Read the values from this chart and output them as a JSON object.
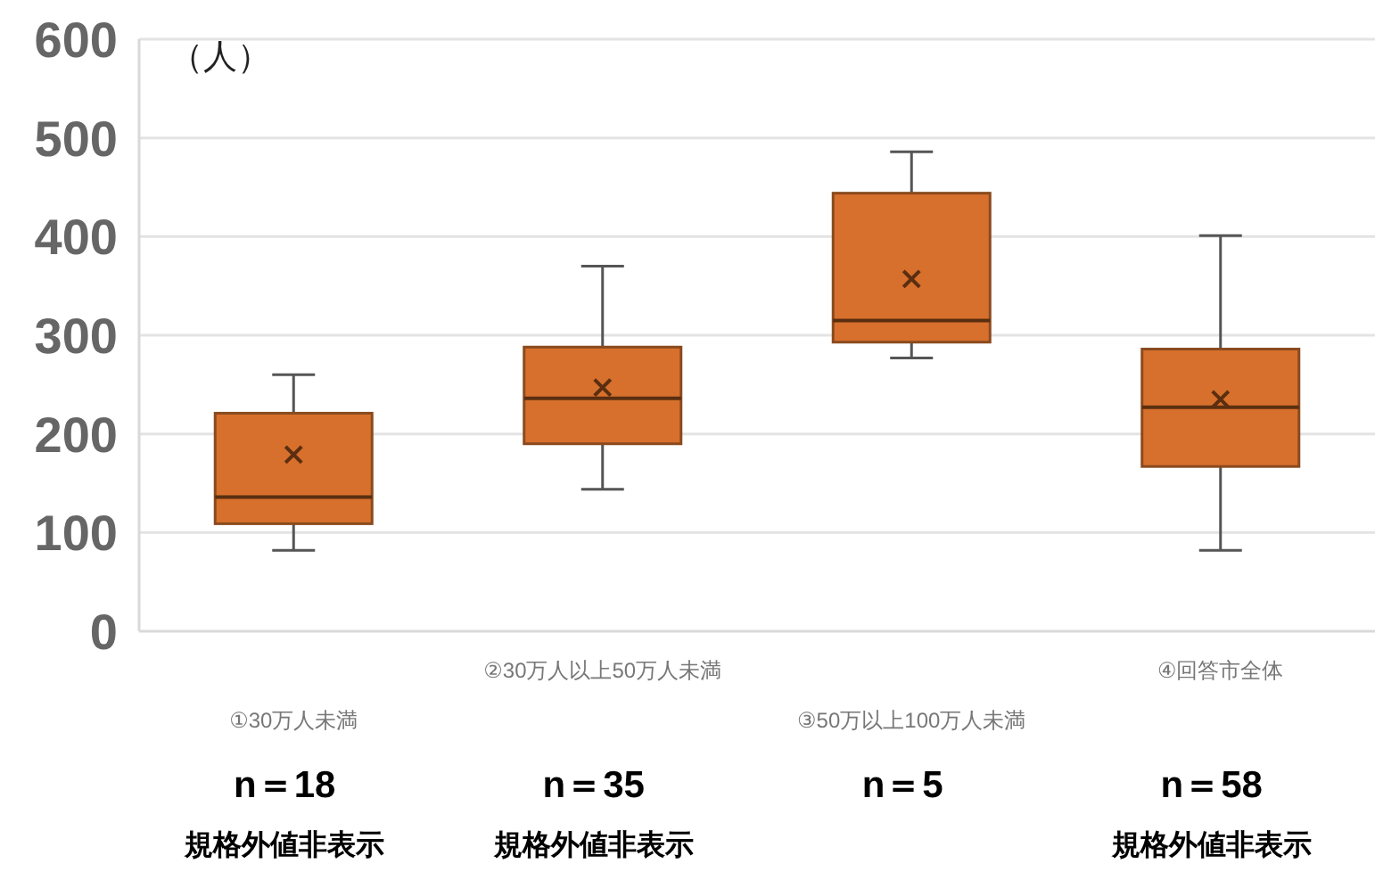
{
  "chart_data": {
    "type": "box",
    "ylabel": "（人）",
    "categories": [
      "①30万人未満",
      "②30万人以上50万人未満",
      "③50万以上100万人未満",
      "④回答市全体"
    ],
    "boxes": [
      {
        "low": 82,
        "q1": 109,
        "median": 136,
        "q3": 221,
        "high": 260,
        "mean": 179
      },
      {
        "low": 144,
        "q1": 190,
        "median": 236,
        "q3": 288,
        "high": 370,
        "mean": 247
      },
      {
        "low": 277,
        "q1": 293,
        "median": 315,
        "q3": 444,
        "high": 486,
        "mean": 357
      },
      {
        "low": 82,
        "q1": 167,
        "median": 227,
        "q3": 286,
        "high": 401,
        "mean": 235
      }
    ],
    "color": "#d7702c",
    "ylim": [
      0,
      600
    ],
    "yticks": [
      0,
      100,
      200,
      300,
      400,
      500,
      600
    ],
    "grid": "y",
    "annotations": [
      "n＝18",
      "規格外値非表示",
      "n＝35",
      "規格外値非表示",
      "n＝5",
      "n＝58",
      "規格外値非表示"
    ]
  }
}
